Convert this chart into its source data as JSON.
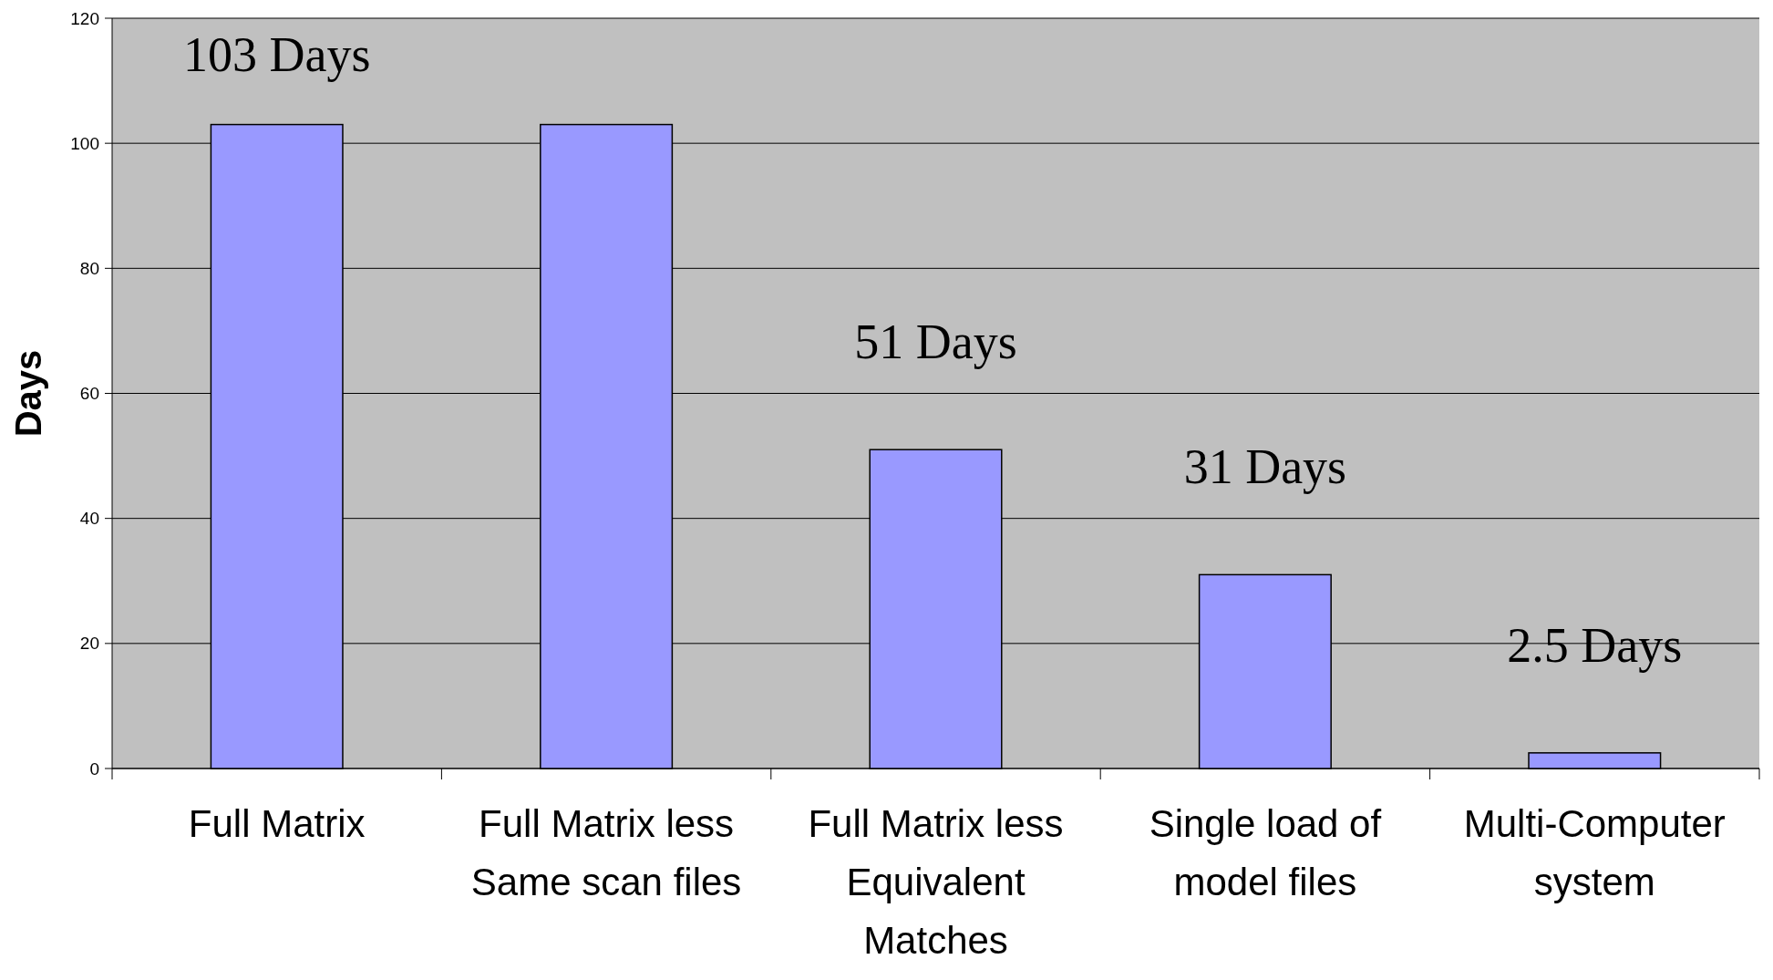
{
  "chart_data": {
    "type": "bar",
    "ylabel": "Days",
    "categories": [
      "Full Matrix",
      "Full Matrix less Same scan files",
      "Full Matrix less Equivalent Matches",
      "Single load of model files",
      "Multi-Computer system"
    ],
    "values": [
      103,
      103,
      51,
      31,
      2.5
    ],
    "value_labels": [
      "103 Days",
      null,
      "51 Days",
      "31 Days",
      "2.5 Days"
    ],
    "color": "#9999ff",
    "ylim": [
      0,
      120
    ],
    "yticks": [
      0,
      20,
      40,
      60,
      80,
      100,
      120
    ],
    "grid": "y"
  }
}
